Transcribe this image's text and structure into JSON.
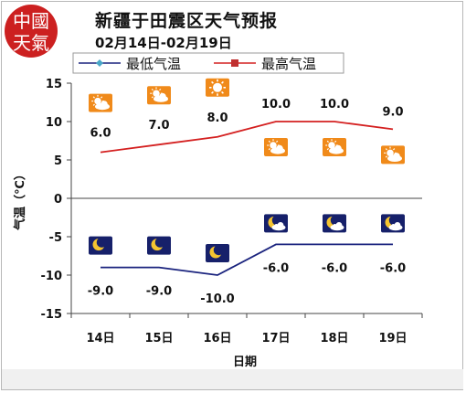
{
  "logo": {
    "chars": [
      "中",
      "國",
      "天",
      "氣"
    ]
  },
  "title": "新疆于田震区天气预报",
  "subtitle": "02月14日-02月19日",
  "chart_data": {
    "type": "line",
    "categories": [
      "14日",
      "15日",
      "16日",
      "17日",
      "18日",
      "19日"
    ],
    "series": [
      {
        "name": "最低气温",
        "values": [
          -9.0,
          -9.0,
          -10.0,
          -6.0,
          -6.0,
          -6.0
        ],
        "color": "#1a237e",
        "marker_color": "#4aa8c8"
      },
      {
        "name": "最高气温",
        "values": [
          6.0,
          7.0,
          8.0,
          10.0,
          10.0,
          9.0
        ],
        "color": "#d42020",
        "marker_color": "#c03030"
      }
    ],
    "value_labels": {
      "high": [
        "6.0",
        "7.0",
        "8.0",
        "10.0",
        "10.0",
        "9.0"
      ],
      "low": [
        "-9.0",
        "-9.0",
        "-10.0",
        "-6.0",
        "-6.0",
        "-6.0"
      ]
    },
    "day_icons": [
      "partly-cloudy-day-icon",
      "partly-cloudy-day-icon",
      "sunny-icon",
      "partly-cloudy-day-icon",
      "partly-cloudy-day-icon",
      "partly-cloudy-day-icon"
    ],
    "night_icons": [
      "clear-night-icon",
      "clear-night-icon",
      "clear-night-icon",
      "partly-cloudy-night-icon",
      "partly-cloudy-night-icon",
      "partly-cloudy-night-icon"
    ],
    "ylim": [
      -15,
      15
    ],
    "yticks": [
      15,
      10,
      5,
      0,
      -5,
      -10,
      -15
    ],
    "xlabel": "日期",
    "ylabel": "气温（℃）",
    "grid": false,
    "legend": "top"
  }
}
